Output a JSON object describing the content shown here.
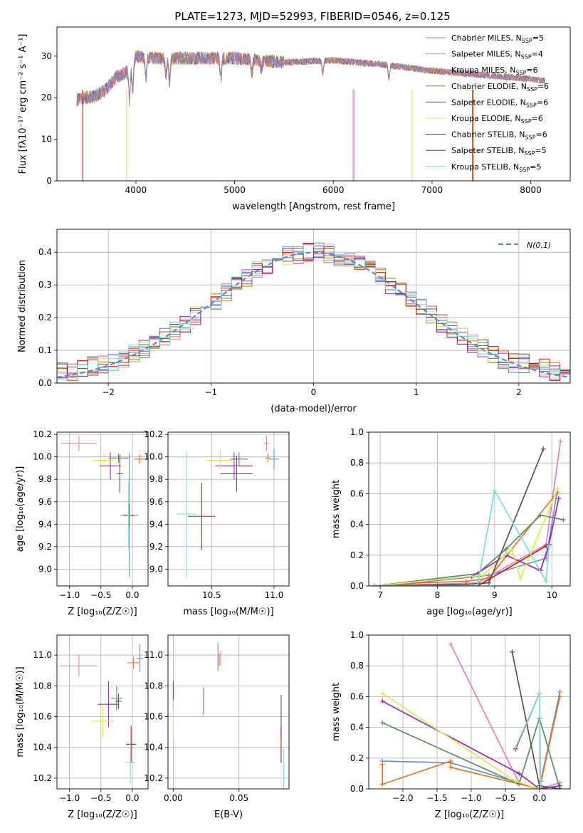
{
  "title": "PLATE=1273, MJD=52993, FIBERID=0546, z=0.125",
  "colors": [
    "#6a8fd8",
    "#e882b7",
    "#e3761f",
    "#5e8a68",
    "#9b2ab0",
    "#d8ec55",
    "#4a4a4a",
    "#c01a10",
    "#7fdcd8"
  ],
  "series_names": [
    "Chabrier MILES, N_SSP=5",
    "Salpeter MILES, N_SSP=4",
    "Kroupa MILES, N_SSP=6",
    "Chabrier ELODIE, N_SSP=6",
    "Salpeter ELODIE, N_SSP=6",
    "Kroupa ELODIE, N_SSP=6",
    "Chabrier STELIB, N_SSP=6",
    "Salpeter STELIB, N_SSP=5",
    "Kroupa STELIB, N_SSP=5"
  ],
  "chart_data": [
    {
      "type": "line",
      "name": "spectrum",
      "xlabel": "wavelength [Angstrom, rest frame]",
      "ylabel": "Flux [f_λ10^-17 erg cm^-2 s^-1 A^-1]",
      "xlim": [
        3200,
        8400
      ],
      "ylim": [
        0,
        37
      ],
      "xticks": [
        4000,
        5000,
        6000,
        7000,
        8000
      ],
      "yticks": [
        0,
        10,
        20,
        30
      ],
      "continuum": {
        "x": [
          3400,
          3600,
          3700,
          3800,
          3900,
          4000,
          4200,
          4500,
          5000,
          5500,
          6000,
          6500,
          7000,
          7500,
          8000,
          8150
        ],
        "y": [
          19.5,
          20.5,
          22,
          25,
          26,
          30,
          29.5,
          29.5,
          29.5,
          28.5,
          29,
          28,
          26.5,
          25.5,
          24.5,
          24
        ]
      },
      "grid": false,
      "legend_position": "upper right"
    },
    {
      "type": "histogram",
      "name": "residual-distribution",
      "xlabel": "(data-model)/error",
      "ylabel": "Normed distribution",
      "xlim": [
        -2.5,
        2.5
      ],
      "ylim": [
        0,
        0.47
      ],
      "xticks": [
        -2,
        -1,
        0,
        1,
        2
      ],
      "yticks": [
        0.0,
        0.1,
        0.2,
        0.3,
        0.4
      ],
      "reference_label": "N(0,1)",
      "grid": true,
      "legend_position": "upper right"
    },
    {
      "type": "scatter",
      "name": "age-vs-Z",
      "xlabel": "Z [log10(Z/Z_sun)]",
      "ylabel": "age [log10(age/yr)]",
      "xlim": [
        -1.2,
        0.25
      ],
      "ylim": [
        8.85,
        10.22
      ],
      "xticks": [
        -1.0,
        -0.5,
        0.0
      ],
      "yticks": [
        9.0,
        9.2,
        9.4,
        9.6,
        9.8,
        10.0,
        10.2
      ],
      "points": [
        {
          "x": -0.05,
          "y": 9.48,
          "xerr": 0.14,
          "yerr": 0.55
        },
        {
          "x": -0.85,
          "y": 10.12,
          "xerr": 0.28,
          "yerr": 0.07
        },
        {
          "x": 0.12,
          "y": 9.98,
          "xerr": 0.1,
          "yerr": 0.04
        },
        {
          "x": -0.22,
          "y": 9.99,
          "xerr": 0.16,
          "yerr": 0.04
        },
        {
          "x": -0.35,
          "y": 9.92,
          "xerr": 0.17,
          "yerr": 0.12
        },
        {
          "x": -0.45,
          "y": 9.97,
          "xerr": 0.18,
          "yerr": 0.07
        },
        {
          "x": -0.2,
          "y": 9.85,
          "xerr": 0.05,
          "yerr": 0.17
        },
        {
          "x": -0.05,
          "y": 9.48,
          "xerr": 0.09,
          "yerr": 0.1
        },
        {
          "x": -0.06,
          "y": 9.48,
          "xerr": 0.02,
          "yerr": 0.3
        }
      ],
      "grid": true
    },
    {
      "type": "scatter",
      "name": "age-vs-mass",
      "xlabel": "mass [log10(M/M_sun)]",
      "ylabel": "",
      "xlim": [
        10.15,
        11.12
      ],
      "ylim": [
        8.85,
        10.22
      ],
      "xticks": [
        10.5,
        11.0
      ],
      "yticks": [
        9.0,
        9.2,
        9.4,
        9.6,
        9.8,
        10.0,
        10.2
      ],
      "points": [
        {
          "x": 11.0,
          "y": 9.98,
          "xerr": 0.04,
          "yerr": 0.09
        },
        {
          "x": 10.94,
          "y": 10.12,
          "xerr": 0.02,
          "yerr": 0.07
        },
        {
          "x": 10.95,
          "y": 9.99,
          "xerr": 0.02,
          "yerr": 0.04
        },
        {
          "x": 10.72,
          "y": 9.98,
          "xerr": 0.07,
          "yerr": 0.06
        },
        {
          "x": 10.68,
          "y": 9.92,
          "xerr": 0.15,
          "yerr": 0.12
        },
        {
          "x": 10.57,
          "y": 9.97,
          "xerr": 0.11,
          "yerr": 0.09
        },
        {
          "x": 10.7,
          "y": 9.85,
          "xerr": 0.13,
          "yerr": 0.16
        },
        {
          "x": 10.42,
          "y": 9.47,
          "xerr": 0.11,
          "yerr": 0.3
        },
        {
          "x": 10.3,
          "y": 9.49,
          "xerr": 0.08,
          "yerr": 0.56
        }
      ],
      "grid": true
    },
    {
      "type": "line",
      "name": "mass-weight-vs-age",
      "xlabel": "age [log10(age/yr)]",
      "ylabel": "mass weight",
      "xlim": [
        6.8,
        10.32
      ],
      "ylim": [
        0,
        1.0
      ],
      "xticks": [
        7,
        8,
        9,
        10
      ],
      "yticks": [
        0.0,
        0.2,
        0.4,
        0.6,
        0.8,
        1.0
      ],
      "series": [
        {
          "x": [
            6.9,
            7.1,
            8.9,
            9.9,
            10.1
          ],
          "y": [
            0.0,
            0.0,
            0.07,
            0.18,
            0.63
          ]
        },
        {
          "x": [
            6.9,
            8.7,
            9.9,
            10.15
          ],
          "y": [
            0.0,
            0.02,
            0.27,
            0.94
          ]
        },
        {
          "x": [
            6.9,
            7.7,
            8.5,
            8.9,
            9.3,
            10.1
          ],
          "y": [
            0.0,
            0.02,
            0.03,
            0.05,
            0.24,
            0.61
          ]
        },
        {
          "x": [
            6.9,
            8.7,
            9.2,
            9.8,
            10.2
          ],
          "y": [
            0.0,
            0.08,
            0.24,
            0.46,
            0.43
          ]
        },
        {
          "x": [
            6.9,
            8.6,
            9.2,
            9.8,
            9.95,
            10.12
          ],
          "y": [
            0.0,
            0.06,
            0.2,
            0.1,
            0.27,
            0.57
          ]
        },
        {
          "x": [
            6.9,
            8.8,
            9.3,
            9.45,
            10.1
          ],
          "y": [
            0.0,
            0.07,
            0.24,
            0.05,
            0.63
          ]
        },
        {
          "x": [
            6.9,
            8.5,
            8.9,
            9.85
          ],
          "y": [
            0.0,
            0.01,
            0.02,
            0.89
          ]
        },
        {
          "x": [
            6.9,
            8.0,
            8.7,
            9.9
          ],
          "y": [
            0.0,
            0.0,
            0.0,
            0.26
          ]
        },
        {
          "x": [
            6.9,
            8.7,
            9.0,
            9.9,
            9.95
          ],
          "y": [
            0.0,
            0.0,
            0.62,
            0.03,
            0.26
          ]
        }
      ],
      "grid": true
    },
    {
      "type": "scatter",
      "name": "mass-vs-Z",
      "xlabel": "Z [log10(Z/Z_sun)]",
      "ylabel": "mass [log10(M/M_sun)]",
      "xlim": [
        -1.2,
        0.25
      ],
      "ylim": [
        10.13,
        11.13
      ],
      "xticks": [
        -1.0,
        -0.5,
        0.0
      ],
      "yticks": [
        10.2,
        10.4,
        10.6,
        10.8,
        11.0
      ],
      "points": [
        {
          "x": 0.12,
          "y": 10.98,
          "xerr": 0.05,
          "yerr": 0.09
        },
        {
          "x": -0.85,
          "y": 10.93,
          "xerr": 0.3,
          "yerr": 0.07
        },
        {
          "x": 0.02,
          "y": 10.95,
          "xerr": 0.1,
          "yerr": 0.04
        },
        {
          "x": -0.25,
          "y": 10.72,
          "xerr": 0.09,
          "yerr": 0.08
        },
        {
          "x": -0.38,
          "y": 10.68,
          "xerr": 0.17,
          "yerr": 0.15
        },
        {
          "x": -0.47,
          "y": 10.57,
          "xerr": 0.18,
          "yerr": 0.11
        },
        {
          "x": -0.22,
          "y": 10.7,
          "xerr": 0.05,
          "yerr": 0.05
        },
        {
          "x": -0.02,
          "y": 10.42,
          "xerr": 0.08,
          "yerr": 0.12
        },
        {
          "x": -0.03,
          "y": 10.3,
          "xerr": 0.08,
          "yerr": 0.13
        }
      ],
      "grid": true
    },
    {
      "type": "scatter",
      "name": "mass-vs-EBV",
      "xlabel": "E(B-V)",
      "ylabel": "",
      "xlim": [
        -0.004,
        0.088
      ],
      "ylim": [
        10.13,
        11.13
      ],
      "xticks": [
        0.0,
        0.05
      ],
      "yticks": [
        10.2,
        10.4,
        10.6,
        10.8,
        11.0
      ],
      "points": [
        {
          "x": 0.034,
          "y": 10.99,
          "xerr": 0,
          "yerr": 0.09
        },
        {
          "x": 0.036,
          "y": 10.98,
          "xerr": 0,
          "yerr": 0.05
        },
        {
          "x": 0.035,
          "y": 10.97,
          "xerr": 0,
          "yerr": 0.04
        },
        {
          "x": 0.023,
          "y": 10.7,
          "xerr": 0,
          "yerr": 0.09
        },
        {
          "x": 0.0,
          "y": 10.74,
          "xerr": 0,
          "yerr": 0.09
        },
        {
          "x": 0.0,
          "y": 10.58,
          "xerr": 0,
          "yerr": 0.13
        },
        {
          "x": 0.082,
          "y": 10.6,
          "xerr": 0,
          "yerr": 0.14
        },
        {
          "x": 0.082,
          "y": 10.42,
          "xerr": 0,
          "yerr": 0.12
        },
        {
          "x": 0.084,
          "y": 10.26,
          "xerr": 0,
          "yerr": 0.13
        }
      ],
      "grid": true
    },
    {
      "type": "line",
      "name": "mass-weight-vs-Z",
      "xlabel": "Z [log10(Z/Z_sun)]",
      "ylabel": "mass weight",
      "xlim": [
        -2.5,
        0.45
      ],
      "ylim": [
        0,
        1.0
      ],
      "xticks": [
        -2.0,
        -1.5,
        -1.0,
        -0.5,
        0.0
      ],
      "yticks": [
        0.0,
        0.2,
        0.4,
        0.6,
        0.8,
        1.0
      ],
      "series": [
        {
          "x": [
            -2.3,
            -1.3,
            0.0,
            0.02,
            0.3
          ],
          "y": [
            0.18,
            0.17,
            0.0,
            0.05,
            0.63
          ]
        },
        {
          "x": [
            -1.3,
            -0.3,
            0.0,
            0.3
          ],
          "y": [
            0.94,
            0.04,
            0.0,
            0.04
          ]
        },
        {
          "x": [
            -2.3,
            -2.3,
            -1.3,
            -1.3,
            0.0,
            0.3
          ],
          "y": [
            0.16,
            0.03,
            0.18,
            0.14,
            0.0,
            0.6
          ]
        },
        {
          "x": [
            -2.3,
            -0.3,
            0.0,
            0.3
          ],
          "y": [
            0.43,
            0.03,
            0.46,
            0.0
          ]
        },
        {
          "x": [
            -2.3,
            -0.3,
            0.0,
            0.3
          ],
          "y": [
            0.57,
            0.1,
            0.0,
            0.02
          ]
        },
        {
          "x": [
            -2.3,
            -0.35,
            0.0
          ],
          "y": [
            0.62,
            0.05,
            0.0
          ]
        },
        {
          "x": [
            -0.4,
            0.0,
            0.3
          ],
          "y": [
            0.89,
            0.02,
            0.0
          ]
        },
        {
          "x": [
            -0.35,
            0.0
          ],
          "y": [
            0.26,
            0.62
          ]
        },
        {
          "x": [
            -0.35,
            0.0,
            0.02
          ],
          "y": [
            0.27,
            0.62,
            0.03
          ]
        }
      ],
      "grid": true
    }
  ]
}
